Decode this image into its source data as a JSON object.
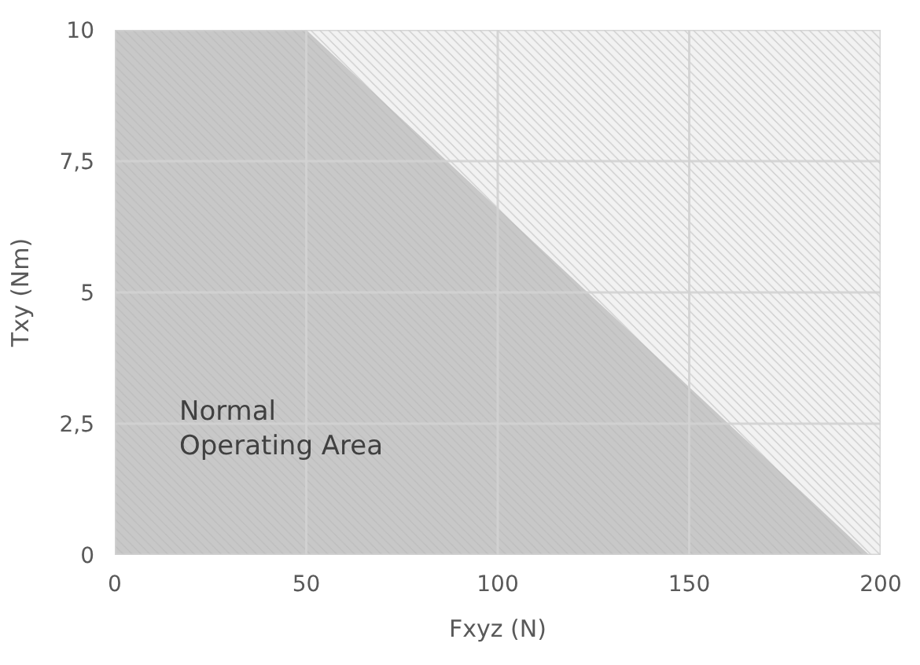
{
  "chart_data": {
    "type": "area",
    "xlabel": "Fxyz (N)",
    "ylabel": "Txy (Nm)",
    "xlim": [
      0,
      200
    ],
    "xticks": [
      0,
      50,
      100,
      150,
      200
    ],
    "ylim": [
      0,
      10
    ],
    "yticks": [
      0,
      {
        "value": 2.5,
        "label": "2,5"
      },
      5,
      {
        "value": 7.5,
        "label": "7,5"
      },
      10
    ],
    "grid": true,
    "series": [
      {
        "color": "#f2f2f2",
        "x": [
          0,
          200
        ],
        "values": [
          10,
          10
        ]
      },
      {
        "color": "#c8c8c8",
        "x": [
          0,
          50,
          197
        ],
        "values": [
          10,
          10,
          0
        ]
      }
    ],
    "annotations": [
      "Normal\nOperating Area"
    ]
  }
}
